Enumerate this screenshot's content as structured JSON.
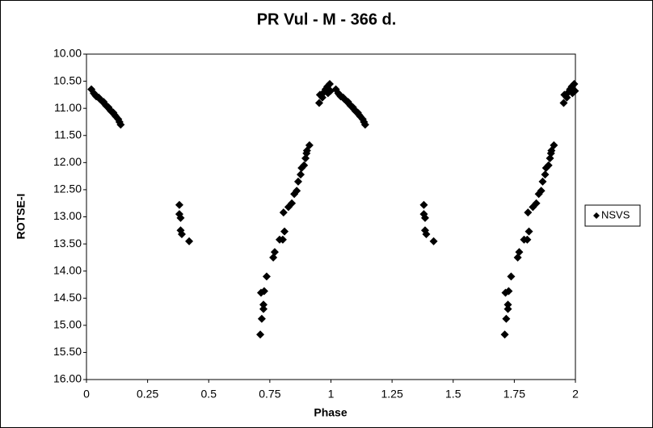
{
  "chart_data": {
    "type": "scatter",
    "title": "PR Vul - M - 366 d.",
    "x_label": "Phase",
    "y_label": "ROTSE-I",
    "xlim": [
      0,
      2
    ],
    "xticks": [
      0,
      0.25,
      0.5,
      0.75,
      1,
      1.25,
      1.5,
      1.75,
      2
    ],
    "ylim": [
      10,
      16
    ],
    "y_inverted": true,
    "yticks": [
      {
        "value": 10,
        "label": "10.00"
      },
      {
        "value": 10.5,
        "label": "10.50"
      },
      {
        "value": 11,
        "label": "11.00"
      },
      {
        "value": 11.5,
        "label": "11.50"
      },
      {
        "value": 12,
        "label": "12.00"
      },
      {
        "value": 12.5,
        "label": "12.50"
      },
      {
        "value": 13,
        "label": "13.00"
      },
      {
        "value": 13.5,
        "label": "13.50"
      },
      {
        "value": 14,
        "label": "14.00"
      },
      {
        "value": 14.5,
        "label": "14.50"
      },
      {
        "value": 15,
        "label": "15.00"
      },
      {
        "value": 15.5,
        "label": "15.50"
      },
      {
        "value": 16,
        "label": "16.00"
      }
    ],
    "legend_position": "right",
    "series": [
      {
        "name": "NSVS",
        "color": "#000000",
        "x": [
          0.02,
          0.03,
          0.035,
          0.04,
          0.05,
          0.055,
          0.06,
          0.07,
          0.075,
          0.08,
          0.09,
          0.095,
          0.1,
          0.11,
          0.115,
          0.12,
          0.13,
          0.135,
          0.14,
          0.38,
          0.38,
          0.385,
          0.385,
          0.39,
          0.42,
          0.711,
          0.717,
          0.724,
          0.724,
          0.714,
          0.727,
          0.737,
          0.764,
          0.77,
          0.79,
          0.803,
          0.81,
          0.806,
          0.826,
          0.84,
          0.85,
          0.86,
          0.866,
          0.876,
          0.88,
          0.89,
          0.896,
          0.9,
          0.902,
          0.912,
          0.952,
          0.955,
          0.965,
          0.972,
          0.978,
          0.985,
          0.988,
          0.995,
          0.998,
          1.02,
          1.03,
          1.035,
          1.04,
          1.05,
          1.055,
          1.06,
          1.07,
          1.075,
          1.08,
          1.09,
          1.095,
          1.1,
          1.11,
          1.115,
          1.12,
          1.13,
          1.135,
          1.14,
          1.38,
          1.38,
          1.385,
          1.385,
          1.39,
          1.42,
          1.711,
          1.717,
          1.724,
          1.724,
          1.714,
          1.727,
          1.737,
          1.764,
          1.77,
          1.79,
          1.803,
          1.81,
          1.806,
          1.826,
          1.84,
          1.85,
          1.86,
          1.866,
          1.876,
          1.88,
          1.89,
          1.896,
          1.9,
          1.902,
          1.912,
          1.952,
          1.955,
          1.965,
          1.972,
          1.978,
          1.985,
          1.988,
          1.995,
          1.998
        ],
        "values": [
          10.65,
          10.72,
          10.75,
          10.78,
          10.8,
          10.83,
          10.85,
          10.88,
          10.92,
          10.95,
          10.98,
          11.02,
          11.05,
          11.08,
          11.12,
          11.15,
          11.2,
          11.25,
          11.3,
          12.78,
          12.95,
          13.02,
          13.25,
          13.32,
          13.45,
          15.17,
          14.88,
          14.7,
          14.62,
          14.4,
          14.37,
          14.1,
          13.75,
          13.65,
          13.42,
          13.42,
          13.27,
          12.92,
          12.82,
          12.75,
          12.58,
          12.52,
          12.35,
          12.22,
          12.1,
          12.05,
          11.92,
          11.83,
          11.78,
          11.68,
          10.9,
          10.75,
          10.8,
          10.7,
          10.65,
          10.6,
          10.72,
          10.55,
          10.68,
          10.65,
          10.72,
          10.75,
          10.78,
          10.8,
          10.83,
          10.85,
          10.88,
          10.92,
          10.95,
          10.98,
          11.02,
          11.05,
          11.08,
          11.12,
          11.15,
          11.2,
          11.25,
          11.3,
          12.78,
          12.95,
          13.02,
          13.25,
          13.32,
          13.45,
          15.17,
          14.88,
          14.7,
          14.62,
          14.4,
          14.37,
          14.1,
          13.75,
          13.65,
          13.42,
          13.42,
          13.27,
          12.92,
          12.82,
          12.75,
          12.58,
          12.52,
          12.35,
          12.22,
          12.1,
          12.05,
          11.92,
          11.83,
          11.78,
          11.68,
          10.9,
          10.75,
          10.8,
          10.7,
          10.65,
          10.6,
          10.72,
          10.55,
          10.68
        ]
      }
    ]
  }
}
